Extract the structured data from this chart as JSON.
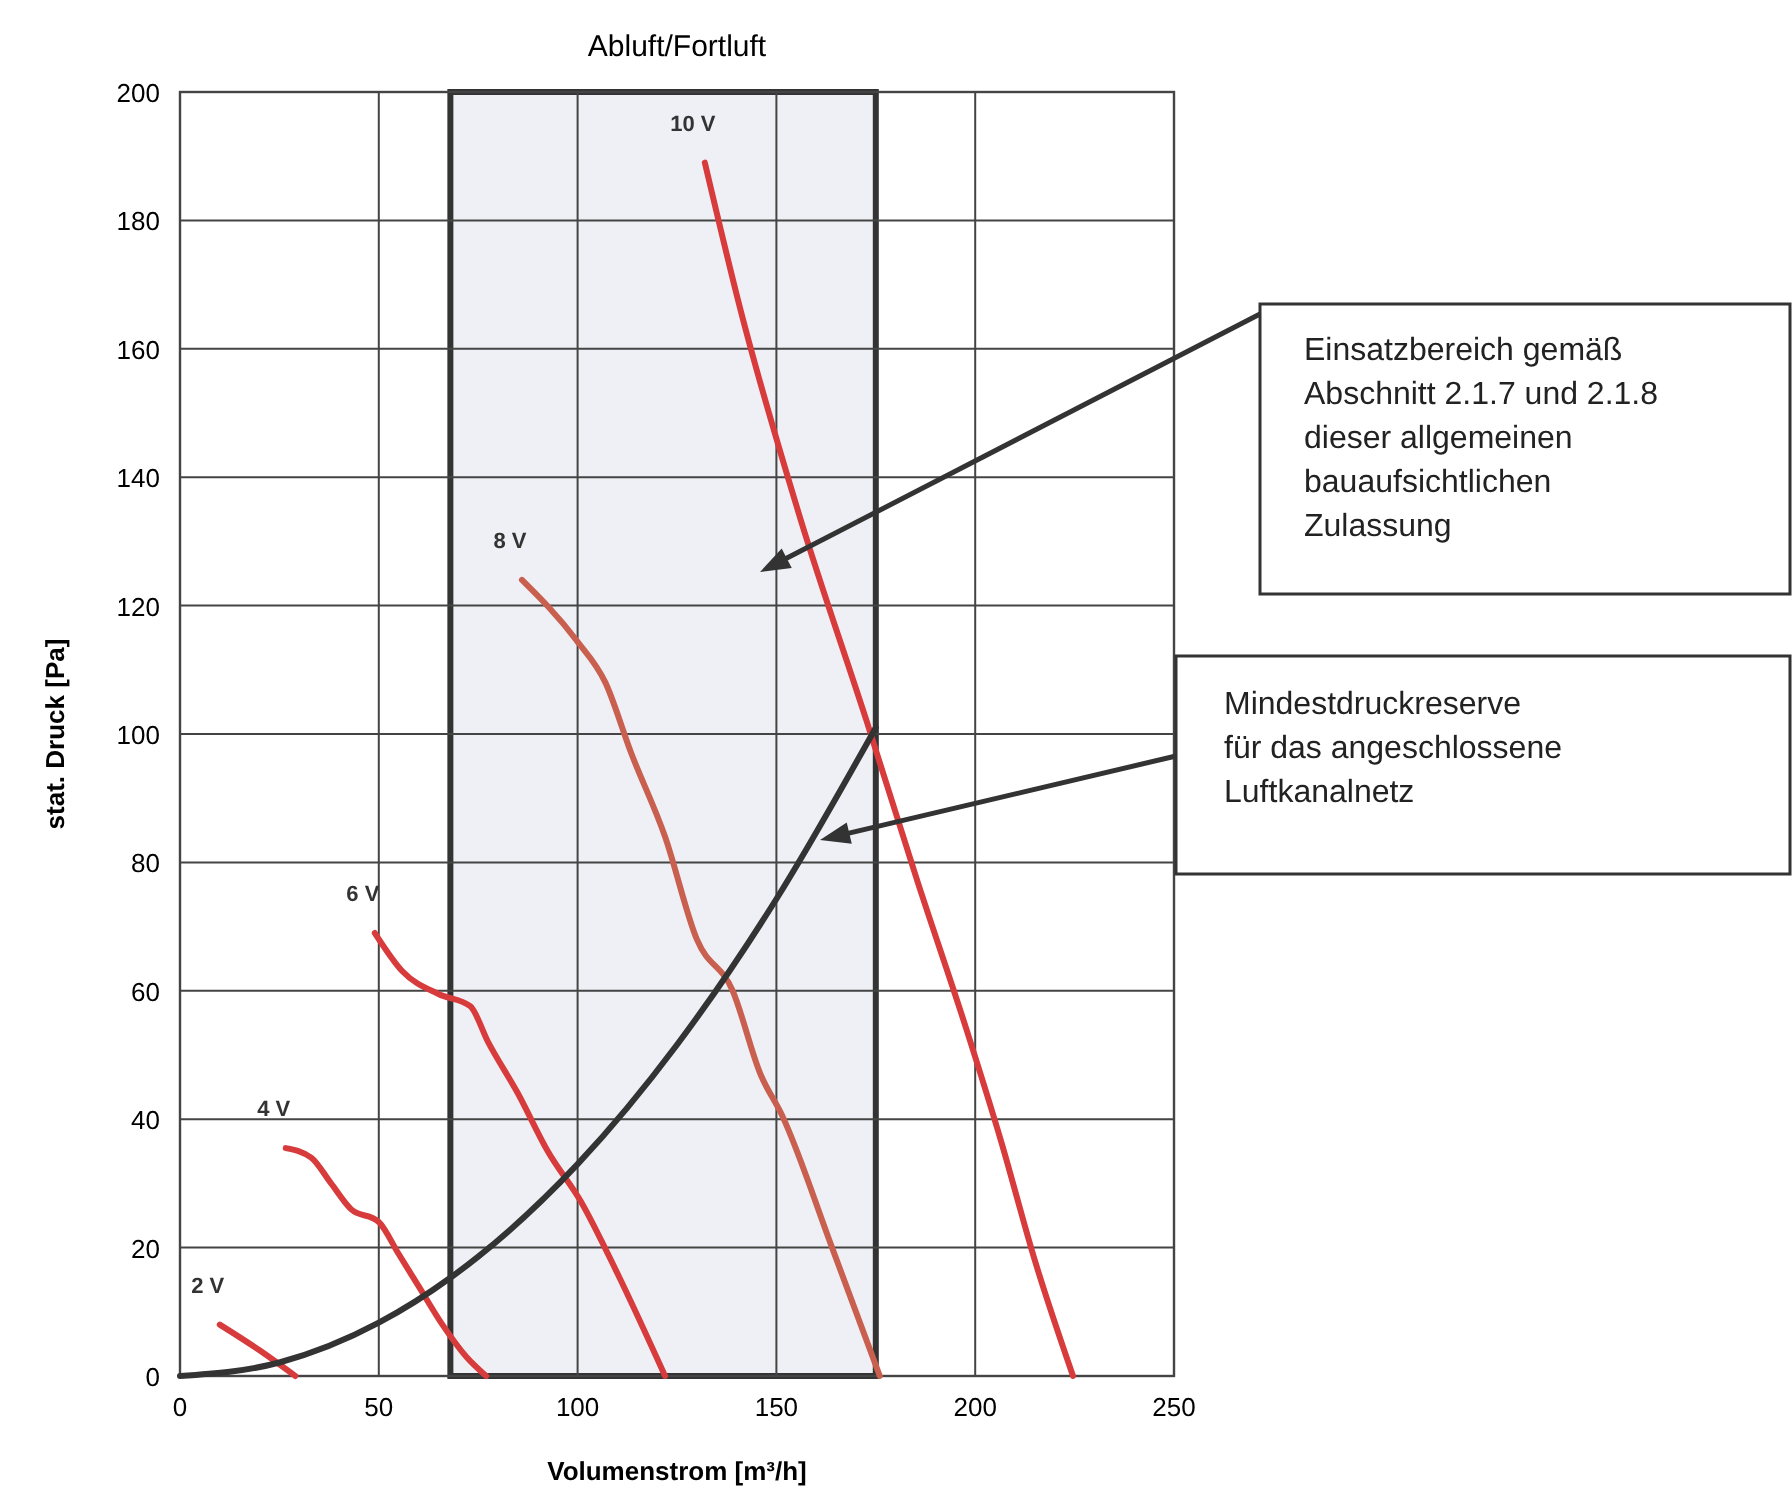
{
  "chart_data": {
    "type": "line",
    "title": "Abluft/Fortluft",
    "xlabel": "Volumenstrom [m³/h]",
    "ylabel": "stat. Druck [Pa]",
    "xlim": [
      0,
      250
    ],
    "ylim": [
      0,
      200
    ],
    "xticks": [
      0,
      50,
      100,
      150,
      200,
      250
    ],
    "yticks": [
      0,
      20,
      40,
      60,
      80,
      100,
      120,
      140,
      160,
      180,
      200
    ],
    "grid": true,
    "marker": "none",
    "line_style": "solid",
    "series": [
      {
        "name": "2 V",
        "color": "#d83b3b",
        "x": [
          10,
          20,
          29
        ],
        "values": [
          8,
          4,
          0
        ]
      },
      {
        "name": "4 V",
        "color": "#d83b3b",
        "x": [
          26.6,
          33,
          38,
          43,
          50,
          55,
          60,
          66,
          72,
          77
        ],
        "values": [
          35.5,
          34,
          30,
          26,
          24,
          19,
          14,
          8,
          3,
          0
        ]
      },
      {
        "name": "6 V",
        "color": "#d83b3b",
        "x": [
          49,
          56,
          65,
          73,
          77.5,
          85,
          92.5,
          101,
          110,
          122
        ],
        "values": [
          69,
          63,
          59.5,
          57.6,
          52,
          44,
          35,
          27,
          16,
          0
        ]
      },
      {
        "name": "8 V",
        "color": "#c9604f",
        "x": [
          86,
          99.7,
          107,
          113.5,
          122,
          130,
          139,
          146,
          151.5,
          164,
          176
        ],
        "values": [
          124,
          114.6,
          108,
          97,
          84,
          68,
          60,
          47,
          40.5,
          20,
          0
        ]
      },
      {
        "name": "10 V",
        "color": "#d83b3b",
        "x": [
          132,
          141,
          156,
          172.7,
          185.5,
          198,
          206.5,
          215,
          224.6
        ],
        "values": [
          189,
          166,
          133.6,
          102,
          77,
          53.6,
          36.6,
          18,
          0
        ]
      },
      {
        "color": "#333333",
        "x": [
          0,
          25,
          50,
          68,
          75,
          100,
          125,
          150,
          175
        ],
        "values": [
          0,
          2.1,
          8.3,
          15.3,
          18.6,
          33,
          51.6,
          74.3,
          101
        ]
      }
    ],
    "bands": [
      {
        "axis": "x",
        "from": 68,
        "to": 175,
        "color": "#eef0f5"
      }
    ],
    "annotations": [
      "Einsatzbereich gemäß Abschnitt 2.1.7 und 2.1.8 dieser allgemeinen bauaufsichtlichen Zulassung",
      "Mindestdruckreserve für das angeschlossene Luftkanalnetz"
    ]
  }
}
